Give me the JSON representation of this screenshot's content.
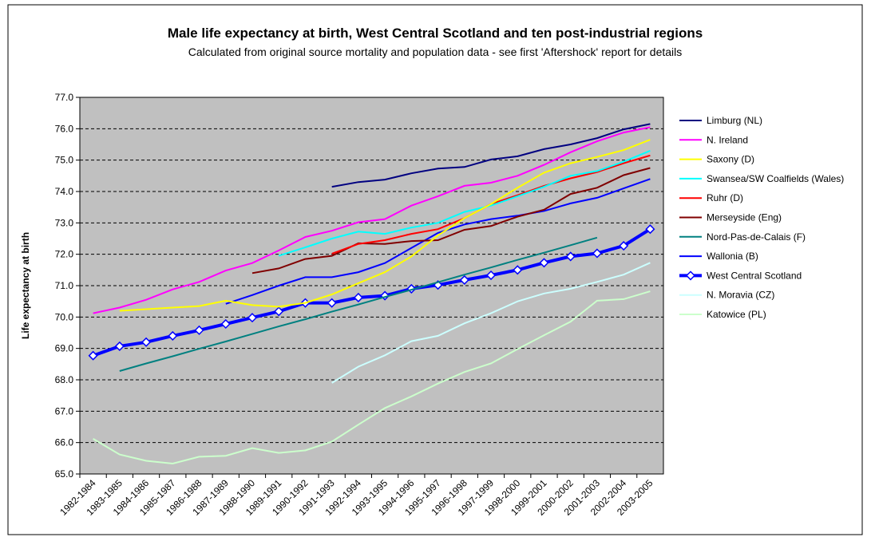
{
  "chart_data": {
    "type": "line",
    "title": "Male life expectancy at birth, West Central Scotland and ten post-industrial regions",
    "subtitle": "Calculated from original source mortality and population data - see first 'Aftershock' report for details",
    "y_label": "Life expectancy at birth",
    "categories": [
      "1982-1984",
      "1983-1985",
      "1984-1986",
      "1985-1987",
      "1986-1988",
      "1987-1989",
      "1988-1990",
      "1989-1991",
      "1990-1992",
      "1991-1993",
      "1992-1994",
      "1993-1995",
      "1994-1996",
      "1995-1997",
      "1996-1998",
      "1997-1999",
      "1998-2000",
      "1999-2001",
      "2000-2002",
      "2001-2003",
      "2002-2004",
      "2003-2005"
    ],
    "ylim": [
      65,
      77
    ],
    "yticks": [
      {
        "value": 65,
        "label": "65.0"
      },
      {
        "value": 66,
        "label": "66.0"
      },
      {
        "value": 67,
        "label": "67.0"
      },
      {
        "value": 68,
        "label": "68.0"
      },
      {
        "value": 69,
        "label": "69.0"
      },
      {
        "value": 70,
        "label": "70.0"
      },
      {
        "value": 71,
        "label": "71.0"
      },
      {
        "value": 72,
        "label": "72.0"
      },
      {
        "value": 73,
        "label": "73.0"
      },
      {
        "value": 74,
        "label": "74.0"
      },
      {
        "value": 75,
        "label": "75.0"
      },
      {
        "value": 76,
        "label": "76.0"
      },
      {
        "value": 77,
        "label": "77.0"
      }
    ],
    "grid": true,
    "legend": "right",
    "series": [
      {
        "name": "Limburg (NL)",
        "color": "#000080",
        "values": [
          null,
          null,
          null,
          null,
          null,
          null,
          null,
          null,
          null,
          74.15,
          74.3,
          74.38,
          74.58,
          74.73,
          74.78,
          75.02,
          75.12,
          75.35,
          75.5,
          75.7,
          75.98,
          76.15
        ]
      },
      {
        "name": "N. Ireland",
        "color": "#ff00ff",
        "values": [
          70.12,
          70.3,
          70.55,
          70.88,
          71.12,
          71.48,
          71.72,
          72.12,
          72.55,
          72.75,
          73.02,
          73.12,
          73.55,
          73.85,
          74.18,
          74.28,
          74.5,
          74.85,
          75.25,
          75.6,
          75.88,
          76.05
        ]
      },
      {
        "name": "Saxony (D)",
        "color": "#ffff00",
        "values": [
          null,
          70.2,
          70.25,
          70.3,
          70.35,
          70.52,
          70.38,
          70.33,
          70.45,
          70.72,
          71.08,
          71.43,
          71.93,
          72.6,
          73.15,
          73.6,
          74.12,
          74.6,
          74.9,
          75.1,
          75.32,
          75.65
        ]
      },
      {
        "name": "Swansea/SW Coalfields (Wales)",
        "color": "#00ffff",
        "values": [
          null,
          null,
          null,
          null,
          null,
          null,
          null,
          71.95,
          72.22,
          72.5,
          72.72,
          72.65,
          72.85,
          73.0,
          73.35,
          73.55,
          73.85,
          74.15,
          74.5,
          74.65,
          74.95,
          75.3
        ]
      },
      {
        "name": "Ruhr (D)",
        "color": "#ff0000",
        "values": [
          null,
          null,
          null,
          null,
          null,
          null,
          null,
          null,
          null,
          72.02,
          72.33,
          72.45,
          72.65,
          72.8,
          73.15,
          73.6,
          73.88,
          74.18,
          74.42,
          74.62,
          74.9,
          75.15
        ]
      },
      {
        "name": "Merseyside (Eng)",
        "color": "#800000",
        "values": [
          null,
          null,
          null,
          null,
          null,
          null,
          71.4,
          71.55,
          71.85,
          71.95,
          72.35,
          72.33,
          72.42,
          72.45,
          72.78,
          72.9,
          73.2,
          73.42,
          73.92,
          74.12,
          74.52,
          74.75
        ]
      },
      {
        "name": "Nord-Pas-de-Calais (F)",
        "color": "#008080",
        "values": [
          null,
          68.28,
          68.52,
          68.75,
          68.99,
          69.22,
          69.46,
          69.7,
          69.93,
          70.17,
          70.4,
          70.64,
          70.87,
          71.11,
          71.35,
          71.58,
          71.82,
          72.05,
          72.29,
          72.53,
          null,
          null
        ]
      },
      {
        "name": "Wallonia (B)",
        "color": "#0000ff",
        "values": [
          null,
          null,
          null,
          null,
          null,
          70.42,
          70.7,
          71.0,
          71.27,
          71.27,
          71.43,
          71.72,
          72.2,
          72.68,
          72.95,
          73.12,
          73.23,
          73.38,
          73.62,
          73.8,
          74.1,
          74.4
        ]
      },
      {
        "name": "West Central Scotland",
        "color": "#0000ff",
        "marker": "diamond",
        "values": [
          68.77,
          69.07,
          69.2,
          69.4,
          69.58,
          69.78,
          69.98,
          70.18,
          70.45,
          70.45,
          70.62,
          70.68,
          70.9,
          71.02,
          71.18,
          71.33,
          71.5,
          71.73,
          71.93,
          72.03,
          72.27,
          72.8
        ]
      },
      {
        "name": "N. Moravia (CZ)",
        "color": "#ccffff",
        "values": [
          null,
          null,
          null,
          null,
          null,
          null,
          null,
          null,
          null,
          67.9,
          68.42,
          68.78,
          69.23,
          69.4,
          69.8,
          70.12,
          70.5,
          70.75,
          70.9,
          71.12,
          71.35,
          71.73
        ]
      },
      {
        "name": "Katowice (PL)",
        "color": "#ccffcc",
        "values": [
          66.12,
          65.62,
          65.42,
          65.33,
          65.55,
          65.58,
          65.82,
          65.67,
          65.75,
          66.03,
          66.57,
          67.1,
          67.47,
          67.88,
          68.25,
          68.52,
          68.98,
          69.42,
          69.85,
          70.52,
          70.57,
          70.82
        ]
      }
    ]
  }
}
